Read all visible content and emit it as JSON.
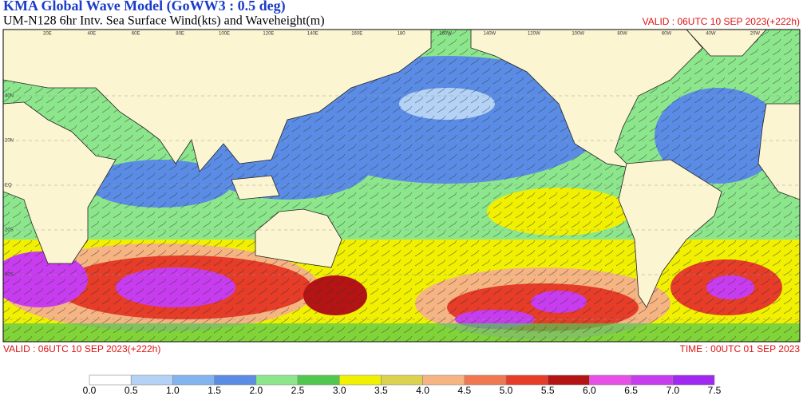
{
  "header": {
    "title": "KMA  Global Wave Model (GoWW3 : 0.5 deg)",
    "subtitle": "UM-N128  6hr Intv. Sea Surface Wind(kts) and Waveheight(m)",
    "valid": "VALID : 06UTC 10 SEP 2023(+222h)"
  },
  "map": {
    "lon_labels": [
      "20E",
      "40E",
      "60E",
      "80E",
      "100E",
      "120E",
      "140E",
      "160E",
      "180",
      "160W",
      "140W",
      "120W",
      "100W",
      "80W",
      "60W",
      "40W",
      "20W"
    ],
    "lat_labels": [
      "40N",
      "20N",
      "EQ",
      "20S",
      "40S"
    ]
  },
  "footer": {
    "valid": "VALID : 06UTC 10 SEP 2023(+222h)",
    "time": "TIME : 00UTC 01 SEP 2023"
  },
  "colorbar": {
    "labels": [
      "0.0",
      "0.5",
      "1.0",
      "1.5",
      "2.0",
      "2.5",
      "3.0",
      "3.5",
      "4.0",
      "4.5",
      "5.0",
      "5.5",
      "6.0",
      "6.5",
      "7.0",
      "7.5"
    ],
    "colors": [
      "#ffffff",
      "#b4d2f5",
      "#82b4f0",
      "#5a8ce6",
      "#8ce68c",
      "#50c850",
      "#f0f000",
      "#dcd250",
      "#f5b482",
      "#f07850",
      "#e63c28",
      "#b41414",
      "#e650e6",
      "#c83cf0",
      "#a028f0"
    ]
  }
}
